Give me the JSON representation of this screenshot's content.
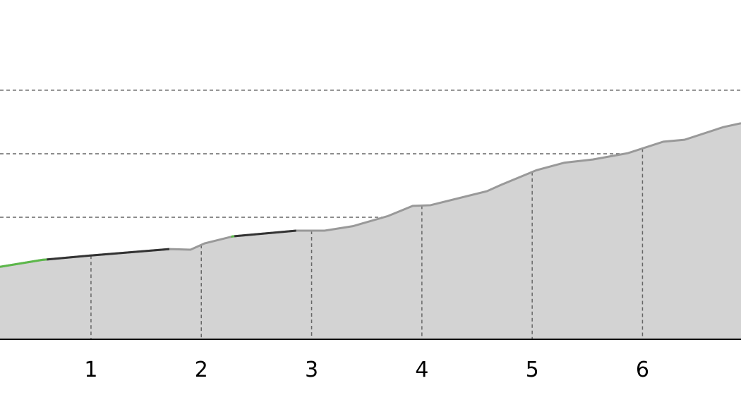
{
  "chart_data": {
    "type": "area",
    "title": "",
    "xlabel": "",
    "ylabel": "",
    "xlim": [
      0.175,
      6.893
    ],
    "ylim": [
      0.08,
      5.42
    ],
    "x_ticks": [
      1,
      2,
      3,
      4,
      5,
      6
    ],
    "x_tick_labels": [
      "1",
      "2",
      "3",
      "4",
      "5",
      "6"
    ],
    "y_gridlines": [
      1,
      2,
      3,
      4
    ],
    "grid": true,
    "grid_style": "dashed",
    "fill_color": "#d3d3d3",
    "default_line_color": "#999999",
    "x": [
      0.175,
      0.559,
      1.006,
      1.71,
      1.902,
      2.03,
      2.286,
      2.862,
      3.118,
      3.374,
      3.693,
      3.917,
      4.077,
      4.589,
      4.717,
      5.037,
      5.293,
      5.549,
      5.869,
      6.189,
      6.381,
      6.733,
      6.893
    ],
    "y": [
      1.22,
      1.33,
      1.4,
      1.5,
      1.49,
      1.59,
      1.7,
      1.79,
      1.79,
      1.86,
      2.02,
      2.18,
      2.19,
      2.41,
      2.51,
      2.74,
      2.86,
      2.91,
      3.01,
      3.19,
      3.22,
      3.42,
      3.48
    ],
    "highlight_segments": [
      {
        "from": 0.175,
        "to": 0.6,
        "color": "#5cb84a"
      },
      {
        "from": 0.6,
        "to": 1.71,
        "color": "#333333"
      },
      {
        "from": 2.27,
        "to": 2.3,
        "color": "#5cb84a"
      },
      {
        "from": 2.3,
        "to": 2.86,
        "color": "#333333"
      }
    ]
  }
}
